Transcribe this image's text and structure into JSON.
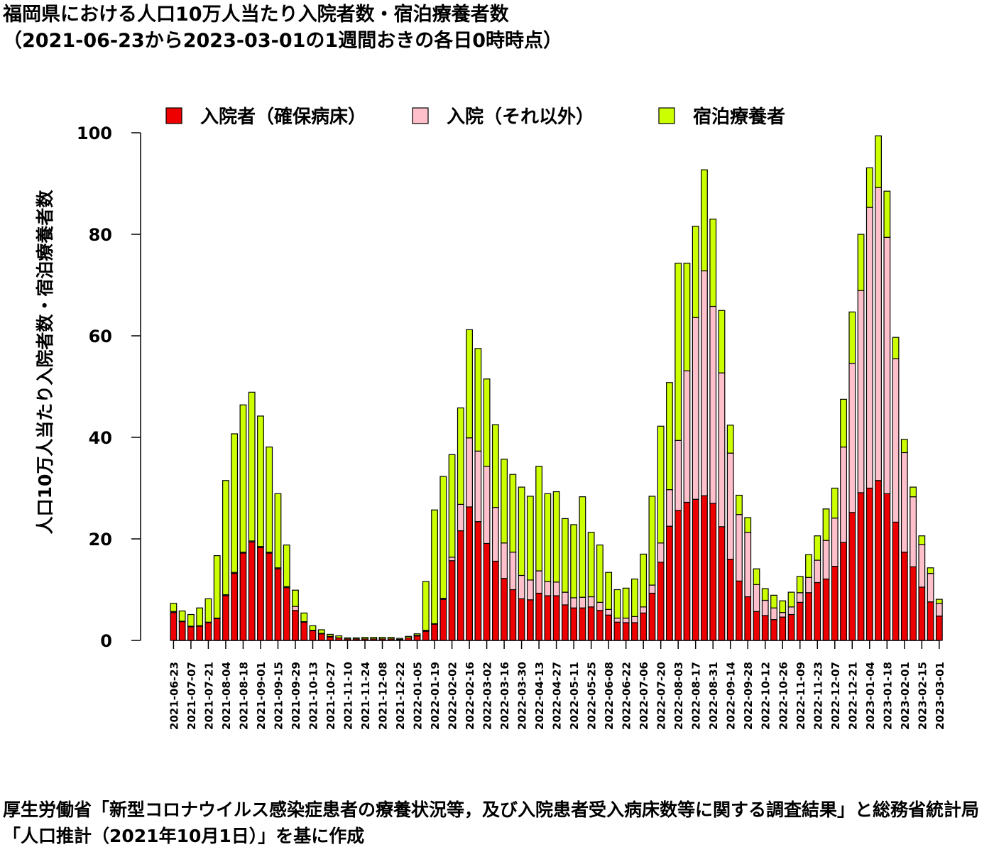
{
  "title_line1": "福岡県における人口10万人当たり入院者数・宿泊療養者数",
  "title_line2": "（2021-06-23から2023-03-01の1週間おきの各日0時時点）",
  "source_text": "厚生労働省「新型コロナウイルス感染症患者の療養状況等，及び入院患者受入病床数等に関する調査結果」と総務省統計局「人口推計（2021年10月1日）」を基に作成",
  "chart_data": {
    "type": "bar",
    "stacked": true,
    "ylabel": "人口10万人当たり入院者数・宿泊療養者数",
    "xlabel": "",
    "ylim": [
      0,
      100
    ],
    "yticks": [
      0,
      20,
      40,
      60,
      80,
      100
    ],
    "grid": false,
    "legend_position": "top",
    "categories": [
      "2021-06-23",
      "2021-06-30",
      "2021-07-07",
      "2021-07-14",
      "2021-07-21",
      "2021-07-28",
      "2021-08-04",
      "2021-08-11",
      "2021-08-18",
      "2021-08-25",
      "2021-09-01",
      "2021-09-08",
      "2021-09-15",
      "2021-09-22",
      "2021-09-29",
      "2021-10-06",
      "2021-10-13",
      "2021-10-20",
      "2021-10-27",
      "2021-11-03",
      "2021-11-10",
      "2021-11-17",
      "2021-11-24",
      "2021-12-01",
      "2021-12-08",
      "2021-12-15",
      "2021-12-22",
      "2021-12-29",
      "2022-01-05",
      "2022-01-12",
      "2022-01-19",
      "2022-01-26",
      "2022-02-02",
      "2022-02-09",
      "2022-02-16",
      "2022-02-23",
      "2022-03-02",
      "2022-03-09",
      "2022-03-16",
      "2022-03-23",
      "2022-03-30",
      "2022-04-06",
      "2022-04-13",
      "2022-04-20",
      "2022-04-27",
      "2022-05-04",
      "2022-05-11",
      "2022-05-18",
      "2022-05-25",
      "2022-06-01",
      "2022-06-08",
      "2022-06-15",
      "2022-06-22",
      "2022-06-29",
      "2022-07-06",
      "2022-07-13",
      "2022-07-20",
      "2022-07-27",
      "2022-08-03",
      "2022-08-10",
      "2022-08-17",
      "2022-08-24",
      "2022-08-31",
      "2022-09-07",
      "2022-09-14",
      "2022-09-21",
      "2022-09-28",
      "2022-10-05",
      "2022-10-12",
      "2022-10-19",
      "2022-10-26",
      "2022-11-02",
      "2022-11-09",
      "2022-11-16",
      "2022-11-23",
      "2022-11-30",
      "2022-12-07",
      "2022-12-14",
      "2022-12-21",
      "2022-12-28",
      "2023-01-04",
      "2023-01-11",
      "2023-01-18",
      "2023-01-25",
      "2023-02-01",
      "2023-02-08",
      "2023-02-15",
      "2023-02-22",
      "2023-03-01"
    ],
    "tick_labels": [
      "2021-06-23",
      "2021-07-07",
      "2021-07-21",
      "2021-08-04",
      "2021-08-18",
      "2021-09-01",
      "2021-09-15",
      "2021-09-29",
      "2021-10-13",
      "2021-10-27",
      "2021-11-10",
      "2021-11-24",
      "2021-12-08",
      "2021-12-22",
      "2022-01-05",
      "2022-01-19",
      "2022-02-02",
      "2022-02-16",
      "2022-03-02",
      "2022-03-16",
      "2022-03-30",
      "2022-04-13",
      "2022-04-27",
      "2022-05-11",
      "2022-05-25",
      "2022-06-08",
      "2022-06-22",
      "2022-07-06",
      "2022-07-20",
      "2022-08-03",
      "2022-08-17",
      "2022-08-31",
      "2022-09-14",
      "2022-09-28",
      "2022-10-12",
      "2022-10-26",
      "2022-11-09",
      "2022-11-23",
      "2022-12-07",
      "2022-12-21",
      "2023-01-04",
      "2023-01-18",
      "2023-02-01",
      "2023-02-15",
      "2023-03-01"
    ],
    "series": [
      {
        "name": "入院者（確保病床）",
        "color": "#ee0000",
        "values": [
          5.5,
          3.7,
          2.7,
          2.8,
          3.5,
          4.3,
          8.8,
          13.2,
          17.2,
          19.4,
          18.3,
          17.2,
          14.1,
          10.4,
          5.9,
          3.6,
          1.9,
          1.3,
          0.7,
          0.5,
          0.3,
          0.3,
          0.3,
          0.3,
          0.3,
          0.3,
          0.2,
          0.5,
          0.9,
          1.8,
          3.2,
          8.1,
          15.7,
          21.6,
          26.3,
          23.4,
          19.1,
          15.6,
          12.2,
          10.0,
          8.2,
          8.0,
          9.3,
          8.8,
          8.8,
          7.0,
          6.4,
          6.4,
          6.6,
          5.9,
          5.0,
          3.6,
          3.5,
          3.5,
          5.4,
          9.3,
          15.4,
          22.5,
          25.6,
          27.2,
          27.8,
          28.5,
          27.0,
          22.4,
          16.0,
          11.7,
          8.6,
          5.7,
          4.9,
          4.1,
          4.6,
          5.1,
          7.5,
          9.4,
          11.4,
          12.1,
          14.6,
          19.3,
          25.2,
          29.1,
          30.0,
          31.5,
          28.9,
          23.3,
          17.4,
          14.5,
          10.5,
          7.6,
          4.8
        ]
      },
      {
        "name": "入院（それ以外）",
        "color": "#ffc0cb",
        "values": [
          0.2,
          0.1,
          0.1,
          0.1,
          0.1,
          0.1,
          0.2,
          0.2,
          0.2,
          0.2,
          0.2,
          0.2,
          0.2,
          0.2,
          0.8,
          0.1,
          0.1,
          0.1,
          0.1,
          0.0,
          0.0,
          0.0,
          0.0,
          0.0,
          0.0,
          0.0,
          0.0,
          0.0,
          0.1,
          0.2,
          0.1,
          0.2,
          0.7,
          5.2,
          13.6,
          13.9,
          15.2,
          10.6,
          7.0,
          7.4,
          4.6,
          3.9,
          4.4,
          2.8,
          2.7,
          2.5,
          2.0,
          2.1,
          2.0,
          1.6,
          1.1,
          0.8,
          0.9,
          1.2,
          1.2,
          1.6,
          3.8,
          7.2,
          13.8,
          25.9,
          35.8,
          44.3,
          38.8,
          30.3,
          20.9,
          13.1,
          12.7,
          5.3,
          3.0,
          2.3,
          0.9,
          1.5,
          1.9,
          3.0,
          4.4,
          7.6,
          9.5,
          18.8,
          29.4,
          39.8,
          55.3,
          57.7,
          50.5,
          32.2,
          19.6,
          13.8,
          8.4,
          5.6,
          2.5
        ]
      },
      {
        "name": "宿泊療養者",
        "color": "#ccff00",
        "values": [
          1.6,
          2.0,
          2.3,
          3.5,
          4.6,
          12.3,
          22.5,
          27.3,
          29.0,
          29.3,
          25.7,
          20.7,
          14.6,
          8.2,
          3.2,
          1.7,
          0.9,
          0.7,
          0.4,
          0.4,
          0.2,
          0.2,
          0.3,
          0.3,
          0.3,
          0.3,
          0.2,
          0.3,
          0.3,
          9.6,
          22.4,
          24.0,
          20.2,
          19.0,
          21.3,
          20.2,
          17.2,
          16.3,
          16.5,
          15.3,
          17.4,
          16.5,
          20.6,
          17.3,
          17.8,
          14.5,
          14.4,
          19.8,
          12.7,
          11.3,
          7.3,
          5.6,
          5.9,
          7.4,
          10.4,
          17.5,
          23.0,
          21.1,
          34.9,
          21.2,
          18.0,
          19.9,
          17.2,
          12.3,
          5.5,
          3.8,
          2.9,
          3.1,
          2.3,
          2.5,
          2.3,
          2.9,
          3.2,
          4.5,
          4.8,
          6.2,
          5.9,
          9.4,
          10.1,
          11.1,
          7.8,
          10.2,
          9.1,
          4.2,
          2.6,
          1.9,
          1.7,
          1.1,
          0.8
        ]
      }
    ]
  }
}
